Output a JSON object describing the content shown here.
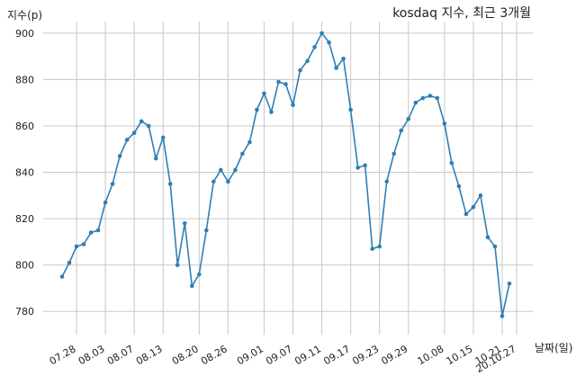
{
  "chart_data": {
    "type": "line",
    "title": "kosdaq 지수, 최근 3개월",
    "ylabel": "지수(p)",
    "xlabel": "날짜(일)",
    "ylim": [
      770,
      905
    ],
    "yticks": [
      780,
      800,
      820,
      840,
      860,
      880,
      900
    ],
    "grid": true,
    "color": "#2f7fb5",
    "xtick_labels": [
      "07.28",
      "08.03",
      "08.07",
      "08.13",
      "08.20",
      "08.26",
      "09.01",
      "09.07",
      "09.11",
      "09.17",
      "09.23",
      "09.29",
      "10.08",
      "10.15",
      "10.21",
      "20.10.27"
    ],
    "xtick_index": [
      2,
      6,
      10,
      14,
      19,
      23,
      28,
      32,
      36,
      40,
      44,
      48,
      53,
      57,
      61,
      63
    ],
    "values": [
      795,
      801,
      808,
      809,
      814,
      815,
      827,
      835,
      847,
      854,
      857,
      862,
      860,
      846,
      855,
      835,
      800,
      818,
      791,
      796,
      815,
      836,
      841,
      836,
      841,
      848,
      853,
      867,
      874,
      866,
      879,
      878,
      869,
      884,
      888,
      894,
      900,
      896,
      885,
      889,
      867,
      842,
      843,
      807,
      808,
      836,
      848,
      858,
      863,
      870,
      872,
      873,
      872,
      861,
      844,
      834,
      822,
      825,
      830,
      812,
      808,
      778,
      792
    ]
  }
}
